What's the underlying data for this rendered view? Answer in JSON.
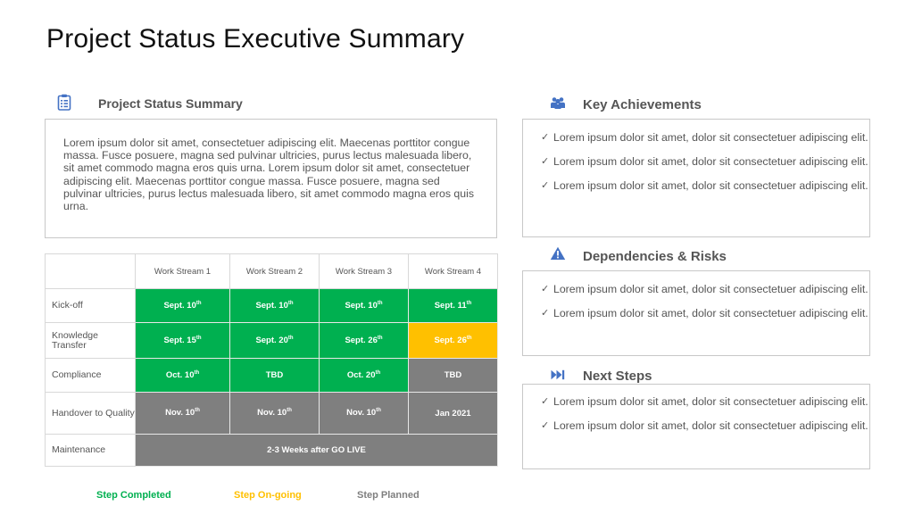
{
  "title": "Project Status Executive Summary",
  "summary": {
    "heading": "Project Status Summary",
    "icon": "clipboard-icon",
    "text": "Lorem ipsum dolor sit amet, consectetuer adipiscing elit. Maecenas porttitor congue massa. Fusce posuere, magna sed pulvinar ultricies, purus lectus malesuada libero, sit amet commodo magna eros quis urna. Lorem ipsum dolor sit amet, consectetuer adipiscing elit. Maecenas porttitor congue massa. Fusce posuere, magna sed pulvinar ultricies, purus lectus malesuada libero, sit amet commodo magna eros quis urna."
  },
  "table": {
    "headers": [
      "Work Stream 1",
      "Work Stream 2",
      "Work Stream 3",
      "Work Stream 4"
    ],
    "rows": [
      {
        "label": "Kick-off",
        "cells": [
          {
            "text": "Sept. 10",
            "sup": "th",
            "status": "completed"
          },
          {
            "text": "Sept. 10",
            "sup": "th",
            "status": "completed"
          },
          {
            "text": "Sept. 10",
            "sup": "th",
            "status": "completed"
          },
          {
            "text": "Sept. 11",
            "sup": "th",
            "status": "completed"
          }
        ]
      },
      {
        "label": "Knowledge Transfer",
        "cells": [
          {
            "text": "Sept. 15",
            "sup": "th",
            "status": "completed"
          },
          {
            "text": "Sept. 20",
            "sup": "th",
            "status": "completed"
          },
          {
            "text": "Sept. 26",
            "sup": "th",
            "status": "completed"
          },
          {
            "text": "Sept. 26",
            "sup": "th",
            "status": "ongoing"
          }
        ]
      },
      {
        "label": "Compliance",
        "cells": [
          {
            "text": "Oct. 10",
            "sup": "th",
            "status": "completed"
          },
          {
            "text": "TBD",
            "sup": "",
            "status": "completed"
          },
          {
            "text": "Oct. 20",
            "sup": "th",
            "status": "completed"
          },
          {
            "text": "TBD",
            "sup": "",
            "status": "planned"
          }
        ]
      },
      {
        "label": "Handover to Quality",
        "cells": [
          {
            "text": "Nov. 10",
            "sup": "th",
            "status": "planned"
          },
          {
            "text": "Nov. 10",
            "sup": "th",
            "status": "planned"
          },
          {
            "text": "Nov. 10",
            "sup": "th",
            "status": "planned"
          },
          {
            "text": "Jan 2021",
            "sup": "",
            "status": "planned"
          }
        ]
      },
      {
        "label": "Maintenance",
        "span": true,
        "cells": [
          {
            "text": "2-3 Weeks after GO LIVE",
            "sup": "",
            "status": "planned"
          }
        ]
      }
    ]
  },
  "legend": {
    "completed": "Step Completed",
    "ongoing": "Step On-going",
    "planned": "Step Planned"
  },
  "colors": {
    "completed": "#00b050",
    "ongoing": "#ffc000",
    "planned": "#7f7f7f",
    "icon_blue": "#4472c4"
  },
  "achievements": {
    "heading": "Key Achievements",
    "icon": "people-icon",
    "items": [
      "Lorem ipsum dolor sit amet, dolor sit consectetuer adipiscing elit.",
      "Lorem ipsum dolor sit amet, dolor sit consectetuer adipiscing elit.",
      "Lorem ipsum dolor sit amet, dolor sit consectetuer adipiscing elit."
    ]
  },
  "risks": {
    "heading": "Dependencies & Risks",
    "icon": "warning-icon",
    "items": [
      "Lorem ipsum dolor sit amet, dolor sit consectetuer adipiscing elit.",
      "Lorem ipsum dolor sit amet, dolor sit consectetuer adipiscing elit."
    ]
  },
  "next_steps": {
    "heading": "Next Steps",
    "icon": "fast-forward-icon",
    "items": [
      "Lorem ipsum dolor sit amet, dolor sit consectetuer adipiscing elit.",
      "Lorem ipsum dolor sit amet, dolor sit consectetuer adipiscing elit."
    ]
  }
}
